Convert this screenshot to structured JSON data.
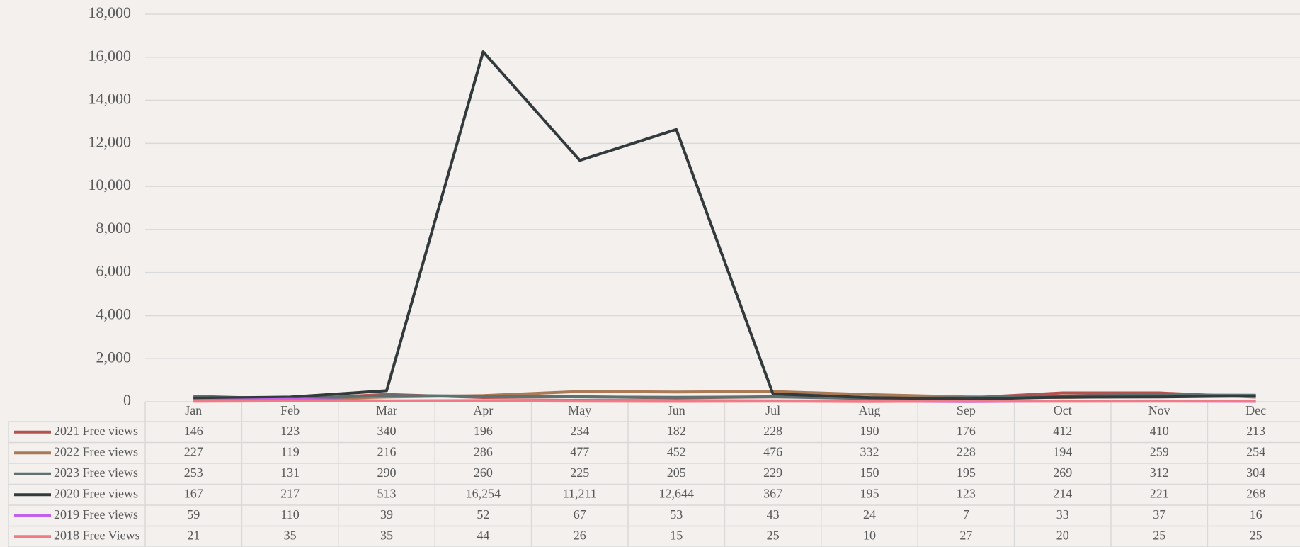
{
  "chart_data": {
    "type": "line",
    "categories": [
      "Jan",
      "Feb",
      "Mar",
      "Apr",
      "May",
      "Jun",
      "Jul",
      "Aug",
      "Sep",
      "Oct",
      "Nov",
      "Dec"
    ],
    "ylim": [
      0,
      18000
    ],
    "yticks": [
      0,
      {
        "value": 2000,
        "label": "2,000"
      },
      {
        "value": 4000,
        "label": "4,000"
      },
      {
        "value": 6000,
        "label": "6,000"
      },
      {
        "value": 8000,
        "label": "8,000"
      },
      {
        "value": 10000,
        "label": "10,000"
      },
      {
        "value": 12000,
        "label": "12,000"
      },
      {
        "value": 14000,
        "label": "14,000"
      },
      {
        "value": 16000,
        "label": "16,000"
      },
      {
        "value": 18000,
        "label": "18,000"
      }
    ],
    "grid": true,
    "series": [
      {
        "name": "2021 Free views",
        "color": "#b5524e",
        "values": [
          146,
          123,
          340,
          196,
          234,
          182,
          228,
          190,
          176,
          412,
          410,
          213
        ]
      },
      {
        "name": "2022 Free views",
        "color": "#a97a55",
        "values": [
          227,
          119,
          216,
          286,
          477,
          452,
          476,
          332,
          228,
          194,
          259,
          254
        ]
      },
      {
        "name": "2023 Free views",
        "color": "#5e7070",
        "values": [
          253,
          131,
          290,
          260,
          225,
          205,
          229,
          150,
          195,
          269,
          312,
          304
        ]
      },
      {
        "name": "2020 Free views",
        "color": "#323a3c",
        "values": [
          167,
          217,
          513,
          16254,
          11211,
          12644,
          367,
          195,
          123,
          214,
          221,
          268
        ],
        "value_labels": [
          "167",
          "217",
          "513",
          "16,254",
          "11,211",
          "12,644",
          "367",
          "195",
          "123",
          "214",
          "221",
          "268"
        ]
      },
      {
        "name": "2019 Free views",
        "color": "#c061e8",
        "values": [
          59,
          110,
          39,
          52,
          67,
          53,
          43,
          24,
          7,
          33,
          37,
          16
        ]
      },
      {
        "name": "2018 Free Views",
        "color": "#f07a85",
        "values": [
          21,
          35,
          35,
          44,
          26,
          15,
          25,
          10,
          27,
          20,
          25,
          25
        ]
      }
    ]
  }
}
